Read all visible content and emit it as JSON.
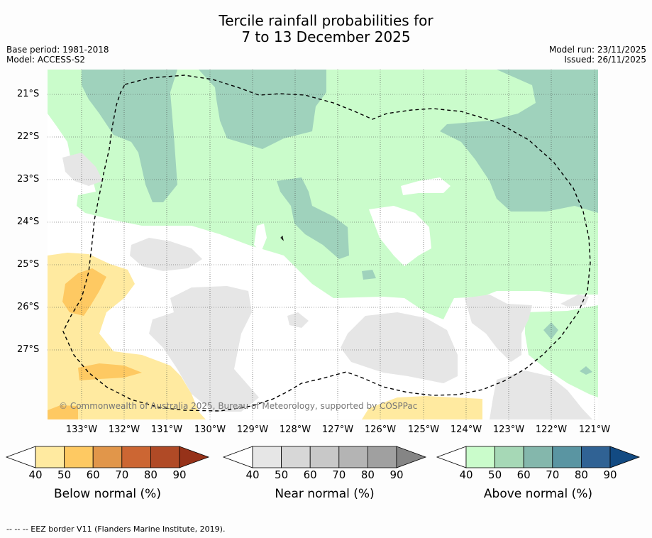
{
  "title": {
    "line1": "Tercile rainfall probabilities for",
    "line2": "7 to 13 December 2025"
  },
  "meta": {
    "base_period": "Base period: 1981-2018",
    "model": "Model: ACCESS-S2",
    "model_run": "Model run: 23/11/2025",
    "issued": "Issued: 26/11/2025"
  },
  "map": {
    "lat_labels": [
      "21°S",
      "22°S",
      "23°S",
      "24°S",
      "25°S",
      "26°S",
      "27°S"
    ],
    "lon_labels": [
      "133°W",
      "132°W",
      "131°W",
      "130°W",
      "129°W",
      "128°W",
      "127°W",
      "126°W",
      "125°W",
      "124°W",
      "123°W",
      "122°W",
      "121°W"
    ],
    "copyright": "© Commonwealth of Australia 2025, Bureau of Meteorology, supported by COSPPac"
  },
  "colorbars": [
    {
      "title": "Below normal (%)",
      "ticks": [
        "40",
        "50",
        "60",
        "70",
        "80",
        "90"
      ],
      "colors": [
        "#ffffff",
        "#ffeaa0",
        "#fec962",
        "#e1964a",
        "#cc6633",
        "#b04a26",
        "#963219"
      ]
    },
    {
      "title": "Near normal (%)",
      "ticks": [
        "40",
        "50",
        "60",
        "70",
        "80",
        "90"
      ],
      "colors": [
        "#ffffff",
        "#e6e6e6",
        "#d7d7d7",
        "#c8c8c8",
        "#b4b4b4",
        "#a0a0a0",
        "#858585"
      ]
    },
    {
      "title": "Above normal (%)",
      "ticks": [
        "40",
        "50",
        "60",
        "70",
        "80",
        "90"
      ],
      "colors": [
        "#ffffff",
        "#cafccb",
        "#a6d8b6",
        "#84b7ac",
        "#5a95a2",
        "#306294",
        "#124a82"
      ]
    }
  ],
  "footer": "--  --  -- EEZ border V11 (Flanders Marine Institute, 2019)."
}
